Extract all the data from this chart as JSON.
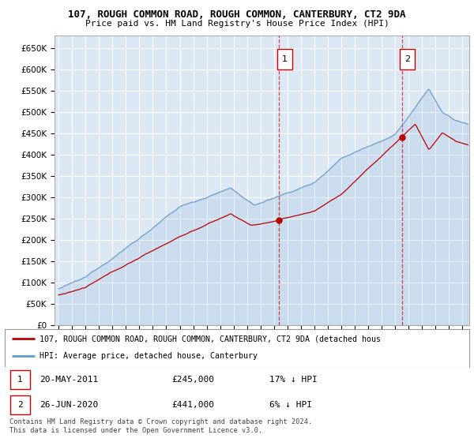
{
  "title1": "107, ROUGH COMMON ROAD, ROUGH COMMON, CANTERBURY, CT2 9DA",
  "title2": "Price paid vs. HM Land Registry's House Price Index (HPI)",
  "ylabel_ticks": [
    "£0",
    "£50K",
    "£100K",
    "£150K",
    "£200K",
    "£250K",
    "£300K",
    "£350K",
    "£400K",
    "£450K",
    "£500K",
    "£550K",
    "£600K",
    "£650K"
  ],
  "ylim": [
    0,
    680000
  ],
  "ytick_vals": [
    0,
    50000,
    100000,
    150000,
    200000,
    250000,
    300000,
    350000,
    400000,
    450000,
    500000,
    550000,
    600000,
    650000
  ],
  "background_color": "#dde8f5",
  "grid_color": "#ffffff",
  "red_line_color": "#bb0000",
  "blue_line_color": "#6699cc",
  "fill_color": "#dde8f5",
  "marker1_value": 245000,
  "marker1_x": 2011.38,
  "marker2_value": 441000,
  "marker2_x": 2020.49,
  "legend_red": "107, ROUGH COMMON ROAD, ROUGH COMMON, CANTERBURY, CT2 9DA (detached hous",
  "legend_blue": "HPI: Average price, detached house, Canterbury",
  "table_row1": [
    "1",
    "20-MAY-2011",
    "£245,000",
    "17% ↓ HPI"
  ],
  "table_row2": [
    "2",
    "26-JUN-2020",
    "£441,000",
    "6% ↓ HPI"
  ],
  "footnote": "Contains HM Land Registry data © Crown copyright and database right 2024.\nThis data is licensed under the Open Government Licence v3.0.",
  "xmin": 1994.7,
  "xmax": 2025.5
}
